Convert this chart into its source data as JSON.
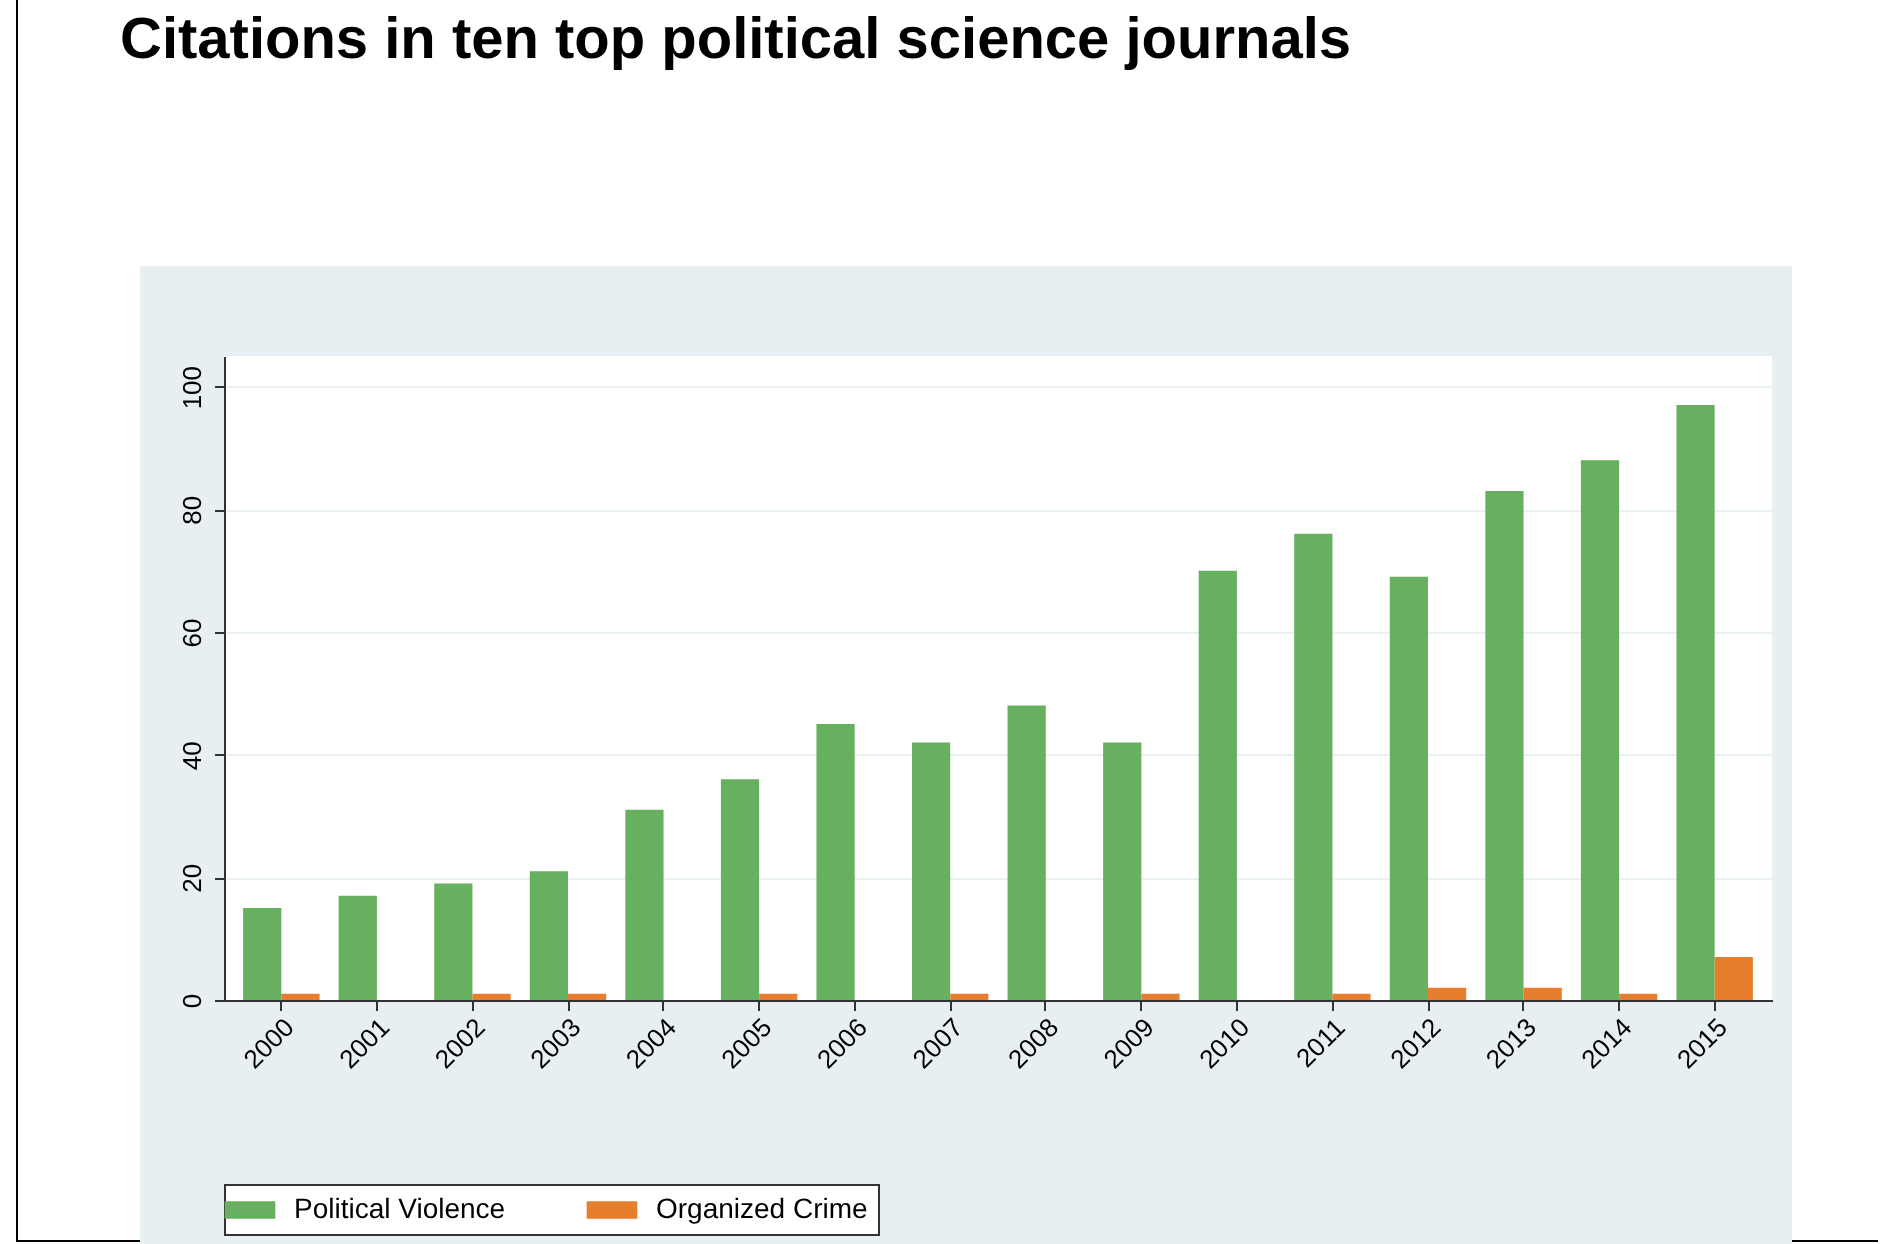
{
  "chart_data": {
    "type": "bar",
    "title": "Citations in ten top political science journals",
    "categories": [
      "2000",
      "2001",
      "2002",
      "2003",
      "2004",
      "2005",
      "2006",
      "2007",
      "2008",
      "2009",
      "2010",
      "2011",
      "2012",
      "2013",
      "2014",
      "2015"
    ],
    "series": [
      {
        "name": "Political Violence",
        "color": "#66b060",
        "values": [
          15,
          17,
          19,
          21,
          31,
          36,
          45,
          42,
          48,
          42,
          70,
          76,
          69,
          83,
          88,
          97
        ]
      },
      {
        "name": "Organized Crime",
        "color": "#e67e2e",
        "values": [
          1,
          0,
          1,
          1,
          0,
          1,
          0,
          1,
          0,
          1,
          0,
          1,
          2,
          2,
          1,
          7
        ]
      }
    ],
    "ylim": [
      0,
      105
    ],
    "yticks": [
      0,
      20,
      40,
      60,
      80,
      100
    ],
    "grid": "y",
    "legend": "bottom"
  }
}
